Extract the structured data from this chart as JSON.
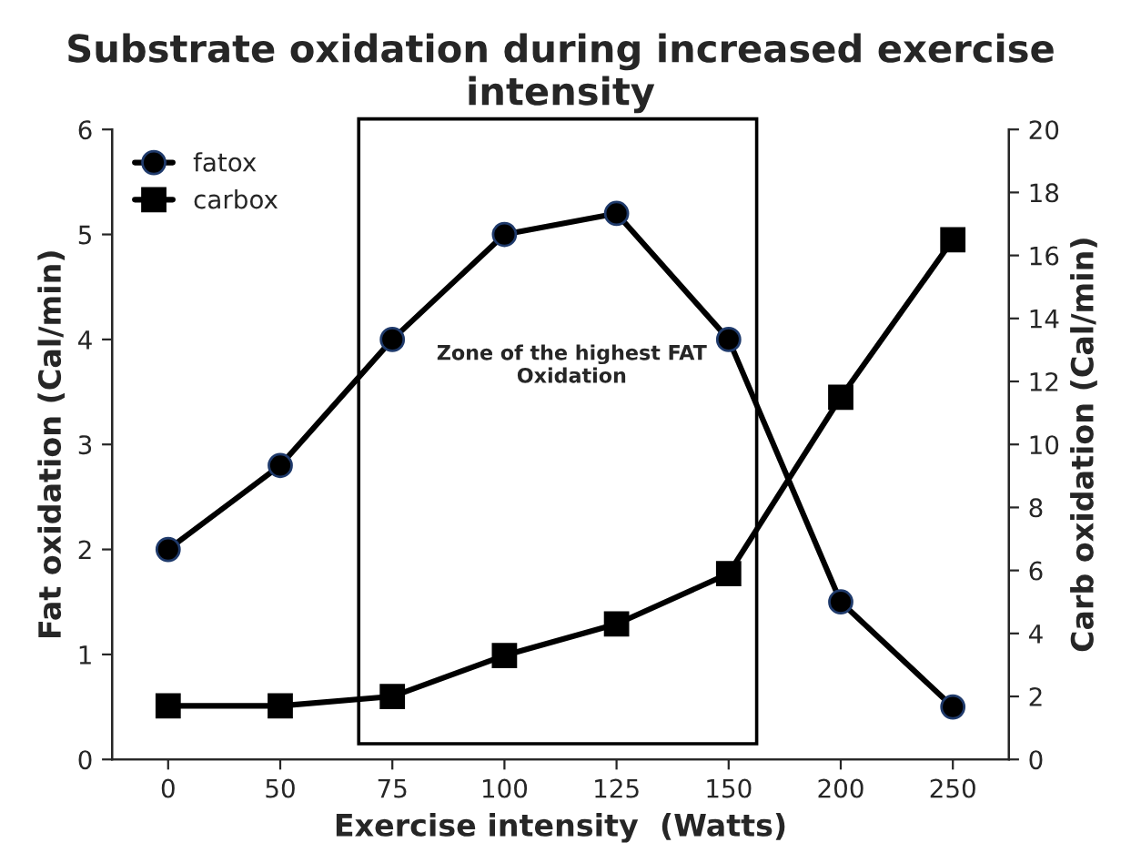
{
  "chart_data": {
    "type": "line",
    "title": "Substrate oxidation during increased exercise intensity",
    "xlabel": "Exercise intensity  (Watts)",
    "ylabel": "Fat oxidation (Cal/min)",
    "y2label": "Carb oxidation (Cal/min)",
    "categories": [
      "0",
      "50",
      "75",
      "100",
      "125",
      "150",
      "200",
      "250"
    ],
    "series": [
      {
        "name": "fatox",
        "color": "#000000",
        "marker": "circle",
        "values": [
          2,
          2.8,
          4,
          5,
          5.2,
          4,
          1.5,
          0.5
        ]
      },
      {
        "name": "carbox",
        "color": "#000000",
        "marker": "square",
        "axis": "y2",
        "values": [
          1.7,
          1.7,
          2.0,
          3.3,
          4.3,
          5.9,
          11.5,
          16.5
        ]
      }
    ],
    "ylim": [
      0,
      6
    ],
    "yticks": [
      0,
      1,
      2,
      3,
      4,
      5,
      6
    ],
    "y2lim": [
      0,
      20
    ],
    "y2ticks": [
      0,
      2,
      4,
      6,
      8,
      10,
      12,
      14,
      16,
      18,
      20
    ],
    "annotations": [
      "Zone of the highest FAT\nOxidation"
    ],
    "legend": "top left",
    "grid": false,
    "line_style": "solid"
  }
}
